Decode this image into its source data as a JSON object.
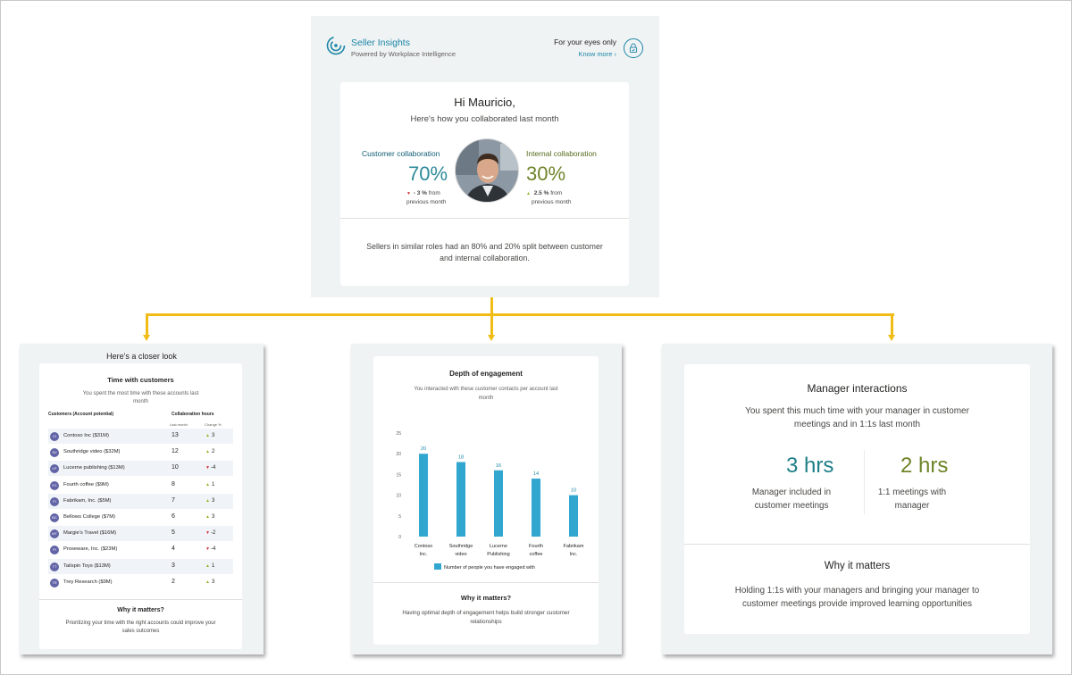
{
  "summary": {
    "app_title": "Seller Insights",
    "app_subtitle": "Powered by Workplace Intelligence",
    "privacy_label": "For your eyes only",
    "know_more": "Know more",
    "greeting": "Hi Mauricio,",
    "subtitle": "Here's how you collaborated last month",
    "customer_label": "Customer collaboration",
    "customer_value": "70%",
    "customer_change": "- 3 %",
    "customer_from": "from",
    "customer_prev": "previous month",
    "internal_label": "Internal collaboration",
    "internal_value": "30%",
    "internal_change": "2.5 %",
    "internal_from": "from",
    "internal_prev": "previous month",
    "comparison": "Sellers in similar roles had an 80% and 20% split between customer and internal collaboration.",
    "colors": {
      "accent": "#1b86a6",
      "customer": "#2d8b98",
      "internal": "#6e8429",
      "connector": "#f2bc16"
    }
  },
  "closer_look": {
    "header": "Here's a closer look",
    "title": "Time with customers",
    "subtitle": "You spent the most time with these accounts last month",
    "col_customer": "Customers (Account potential)",
    "col_hours": "Collaboration hours",
    "col_last_month": "Last month",
    "col_change": "Change %",
    "rows": [
      {
        "initials": "CI",
        "name": "Contoso Inc ($31M)",
        "hours": "13",
        "change": "3",
        "dir": "up"
      },
      {
        "initials": "SV",
        "name": "Southridge video ($32M)",
        "hours": "12",
        "change": "2",
        "dir": "up"
      },
      {
        "initials": "LP",
        "name": "Lucerne publishing ($13M)",
        "hours": "10",
        "change": "-4",
        "dir": "down"
      },
      {
        "initials": "FC",
        "name": "Fourth coffee ($9M)",
        "hours": "8",
        "change": "1",
        "dir": "up"
      },
      {
        "initials": "FI",
        "name": "Fabrikam, Inc. ($5M)",
        "hours": "7",
        "change": "3",
        "dir": "up"
      },
      {
        "initials": "BC",
        "name": "Bellows College ($7M)",
        "hours": "6",
        "change": "3",
        "dir": "up"
      },
      {
        "initials": "MT",
        "name": "Margie's Travel ($16M)",
        "hours": "5",
        "change": "-2",
        "dir": "down"
      },
      {
        "initials": "PI",
        "name": "Proseware, Inc. ($23M)",
        "hours": "4",
        "change": "-4",
        "dir": "down"
      },
      {
        "initials": "TT",
        "name": "Tailspin Toys ($13M)",
        "hours": "3",
        "change": "1",
        "dir": "up"
      },
      {
        "initials": "TR",
        "name": "Trey Research  ($9M)",
        "hours": "2",
        "change": "3",
        "dir": "up"
      }
    ],
    "why_title": "Why it matters?",
    "why_text": "Prioritizing your time with the right accounts could improve your sales outcomes"
  },
  "engagement": {
    "title": "Depth of engagement",
    "subtitle": "You interacted with these customer contacts per account last month",
    "why_title": "Why it matters?",
    "why_text": "Having optimal depth of engagement helps build stronger customer relationships"
  },
  "chart_data": {
    "type": "bar",
    "categories": [
      "Contoso Inc.",
      "Southridge video",
      "Lucerne Publishing",
      "Fourth coffee",
      "Fabrikam Inc."
    ],
    "series": [
      {
        "name": "Number of people you have engaged with",
        "values": [
          20,
          18,
          16,
          14,
          10
        ]
      }
    ],
    "ylim": [
      0,
      25
    ],
    "yticks": [
      0,
      5,
      10,
      15,
      20,
      25
    ],
    "grid": false,
    "legend": "bottom",
    "color": "#31a7d0"
  },
  "manager": {
    "title": "Manager interactions",
    "subtitle": "You spent this much time with your manager in customer meetings and in 1:1s last month",
    "metric1_value": "3 hrs",
    "metric1_label": "Manager included in customer meetings",
    "metric2_value": "2 hrs",
    "metric2_label": "1:1 meetings with manager",
    "why_title": "Why it matters",
    "why_text": "Holding 1:1s with your managers and bringing your manager to customer meetings provide improved learning opportunities"
  }
}
